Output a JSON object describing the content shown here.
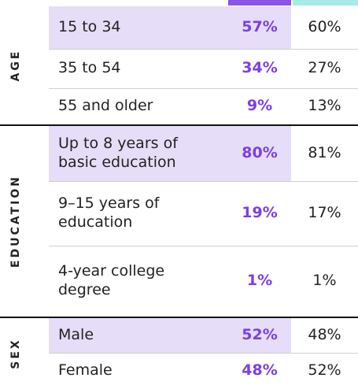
{
  "table": {
    "groups": [
      {
        "label": "AGE",
        "rows": [
          {
            "label": "15 to 34",
            "value": "57%",
            "compare": "60%"
          },
          {
            "label": "35 to 54",
            "value": "34%",
            "compare": "27%"
          },
          {
            "label": "55 and older",
            "value": "9%",
            "compare": "13%"
          }
        ]
      },
      {
        "label": "EDUCATION",
        "rows": [
          {
            "label": "Up to 8 years of basic education",
            "value": "80%",
            "compare": "81%"
          },
          {
            "label": "9–15 years of education",
            "value": "19%",
            "compare": "17%"
          },
          {
            "label": "4-year college degree",
            "value": "1%",
            "compare": "1%"
          }
        ]
      },
      {
        "label": "SEX",
        "rows": [
          {
            "label": "Male",
            "value": "52%",
            "compare": "48%"
          },
          {
            "label": "Female",
            "value": "48%",
            "compare": "52%"
          }
        ]
      }
    ]
  }
}
